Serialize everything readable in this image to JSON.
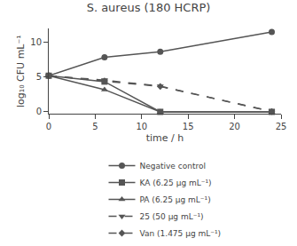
{
  "chart_data": {
    "type": "line",
    "title": "S. aureus (180 HCRP)",
    "x_label": "time / h",
    "y_label": "log₁₀ CFU mL⁻¹",
    "x": [
      0,
      6,
      12,
      24
    ],
    "xlim": [
      0,
      25
    ],
    "ylim": [
      -0.3,
      12
    ],
    "xticks": [
      0,
      5,
      10,
      15,
      20,
      25
    ],
    "yticks": [
      0,
      5,
      10
    ],
    "grid": false,
    "legend": "bottom",
    "series": [
      {
        "name": "Negative control",
        "color": "#555555",
        "marker": "circle",
        "line_style": "solid",
        "values": [
          5.2,
          7.85,
          8.65,
          11.5
        ]
      },
      {
        "name": "KA (6.25 μg mL⁻¹)",
        "color": "#555555",
        "marker": "square",
        "line_style": "solid",
        "values": [
          5.2,
          4.35,
          0.0,
          0.0
        ]
      },
      {
        "name": "PA (6.25 μg mL⁻¹)",
        "color": "#555555",
        "marker": "triangle-up",
        "line_style": "solid",
        "values": [
          5.2,
          3.2,
          0.0,
          0.0
        ]
      },
      {
        "name": "25 (50 μg mL⁻¹)",
        "color": "#555555",
        "marker": "triangle-down",
        "line_style": "dashed",
        "values": [
          5.2,
          4.55,
          3.7,
          0.05
        ]
      },
      {
        "name": "Van (1.475 μg mL⁻¹)",
        "color": "#555555",
        "marker": "diamond",
        "line_style": "dashed",
        "values": [
          5.2,
          4.45,
          3.65,
          0.05
        ]
      }
    ]
  }
}
